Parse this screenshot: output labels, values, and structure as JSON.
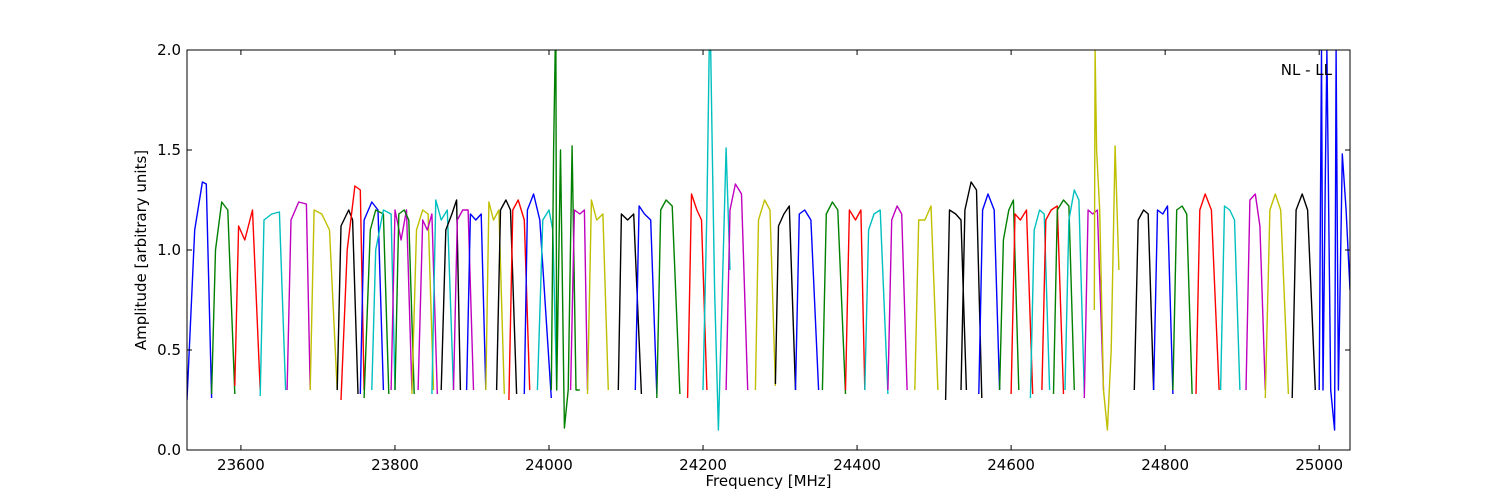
{
  "chart_data": {
    "type": "line",
    "title": "",
    "xlabel": "Frequency [MHz]",
    "ylabel": "Amplitude [arbitrary units]",
    "annotation": "NL - LL",
    "xlim": [
      23530,
      25040
    ],
    "ylim": [
      0.0,
      2.0
    ],
    "xticks": [
      23600,
      23800,
      24000,
      24200,
      24400,
      24600,
      24800,
      25000
    ],
    "yticks": [
      0.0,
      0.5,
      1.0,
      1.5,
      2.0
    ],
    "xtick_labels": [
      "23600",
      "23800",
      "24000",
      "24200",
      "24400",
      "24600",
      "24800",
      "25000"
    ],
    "ytick_labels": [
      "0.0",
      "0.5",
      "1.0",
      "1.5",
      "2.0"
    ],
    "grid": false,
    "colors": [
      "#0000ff",
      "#008000",
      "#ff0000",
      "#00bfbf",
      "#bf00bf",
      "#bfbf00",
      "#000000"
    ],
    "series": [
      {
        "color": "#0000ff",
        "x": [
          23530,
          23540,
          23550,
          23555,
          23562
        ],
        "y": [
          0.25,
          1.1,
          1.34,
          1.33,
          0.26
        ]
      },
      {
        "color": "#008000",
        "x": [
          23562,
          23567,
          23575,
          23583,
          23592
        ],
        "y": [
          0.28,
          1.0,
          1.24,
          1.2,
          0.28
        ]
      },
      {
        "color": "#ff0000",
        "x": [
          23592,
          23597,
          23605,
          23615,
          23625
        ],
        "y": [
          0.32,
          1.12,
          1.05,
          1.2,
          0.3
        ]
      },
      {
        "color": "#00bfbf",
        "x": [
          23625,
          23630,
          23640,
          23650,
          23658
        ],
        "y": [
          0.27,
          1.15,
          1.18,
          1.19,
          0.3
        ]
      },
      {
        "color": "#bf00bf",
        "x": [
          23660,
          23665,
          23675,
          23685,
          23690
        ],
        "y": [
          0.3,
          1.15,
          1.24,
          1.23,
          0.3
        ]
      },
      {
        "color": "#bfbf00",
        "x": [
          23690,
          23695,
          23705,
          23715,
          23725
        ],
        "y": [
          0.3,
          1.2,
          1.18,
          1.1,
          0.3
        ]
      },
      {
        "color": "#000000",
        "x": [
          23725,
          23730,
          23740,
          23745,
          23752
        ],
        "y": [
          0.3,
          1.12,
          1.2,
          1.15,
          0.28
        ]
      },
      {
        "color": "#ff0000",
        "x": [
          23730,
          23738,
          23748,
          23755,
          23760
        ],
        "y": [
          0.25,
          1.0,
          1.32,
          1.3,
          0.3
        ]
      },
      {
        "color": "#0000ff",
        "x": [
          23755,
          23760,
          23770,
          23778,
          23785
        ],
        "y": [
          0.28,
          1.15,
          1.24,
          1.2,
          0.3
        ]
      },
      {
        "color": "#008000",
        "x": [
          23760,
          23768,
          23775,
          23785,
          23792
        ],
        "y": [
          0.26,
          1.1,
          1.2,
          1.18,
          0.28
        ]
      },
      {
        "color": "#00bfbf",
        "x": [
          23770,
          23775,
          23785,
          23795,
          23800
        ],
        "y": [
          0.3,
          1.0,
          1.2,
          1.18,
          0.3
        ]
      },
      {
        "color": "#bf00bf",
        "x": [
          23795,
          23800,
          23808,
          23815,
          23822
        ],
        "y": [
          0.3,
          1.2,
          1.05,
          1.2,
          0.3
        ]
      },
      {
        "color": "#008000",
        "x": [
          23800,
          23805,
          23812,
          23818,
          23825
        ],
        "y": [
          0.3,
          1.18,
          1.2,
          1.15,
          0.28
        ]
      },
      {
        "color": "#bfbf00",
        "x": [
          23822,
          23828,
          23836,
          23843,
          23850
        ],
        "y": [
          0.28,
          1.1,
          1.2,
          1.18,
          0.3
        ]
      },
      {
        "color": "#bf00bf",
        "x": [
          23830,
          23836,
          23842,
          23848,
          23855
        ],
        "y": [
          0.3,
          1.15,
          1.1,
          1.18,
          0.28
        ]
      },
      {
        "color": "#00bfbf",
        "x": [
          23848,
          23853,
          23860,
          23868,
          23876
        ],
        "y": [
          0.28,
          1.25,
          1.15,
          1.2,
          0.3
        ]
      },
      {
        "color": "#000000",
        "x": [
          23860,
          23866,
          23874,
          23880,
          23885
        ],
        "y": [
          0.3,
          1.1,
          1.18,
          1.25,
          0.3
        ]
      },
      {
        "color": "#bf00bf",
        "x": [
          23876,
          23881,
          23888,
          23895,
          23902
        ],
        "y": [
          0.3,
          1.15,
          1.2,
          1.2,
          0.3
        ]
      },
      {
        "color": "#0000ff",
        "x": [
          23893,
          23898,
          23905,
          23912,
          23918
        ],
        "y": [
          0.3,
          1.18,
          1.15,
          1.18,
          0.3
        ]
      },
      {
        "color": "#bfbf00",
        "x": [
          23918,
          23922,
          23928,
          23935,
          23942
        ],
        "y": [
          0.3,
          1.24,
          1.15,
          1.2,
          0.28
        ]
      },
      {
        "color": "#000000",
        "x": [
          23932,
          23937,
          23944,
          23950,
          23958
        ],
        "y": [
          0.3,
          1.2,
          1.25,
          1.2,
          0.28
        ]
      },
      {
        "color": "#ff0000",
        "x": [
          23948,
          23953,
          23960,
          23968,
          23975
        ],
        "y": [
          0.25,
          1.2,
          1.25,
          1.15,
          0.3
        ]
      },
      {
        "color": "#0000ff",
        "x": [
          23968,
          23972,
          23980,
          23988,
          24003
        ],
        "y": [
          0.28,
          1.2,
          1.28,
          1.15,
          0.26
        ]
      },
      {
        "color": "#00bfbf",
        "x": [
          23985,
          23992,
          24000,
          24005,
          24010
        ],
        "y": [
          0.3,
          1.15,
          1.2,
          1.1,
          0.3
        ]
      },
      {
        "color": "#008000",
        "x": [
          24003,
          24006,
          24008,
          24009,
          24010,
          24015,
          24020,
          24025,
          24030,
          24035,
          24040
        ],
        "y": [
          0.3,
          1.5,
          2.0,
          2.0,
          0.3,
          1.5,
          0.11,
          0.3,
          1.52,
          0.3,
          0.3
        ]
      },
      {
        "color": "#bf00bf",
        "x": [
          24028,
          24033,
          24040,
          24046,
          24050
        ],
        "y": [
          0.3,
          1.2,
          1.18,
          1.2,
          0.3
        ]
      },
      {
        "color": "#bfbf00",
        "x": [
          24050,
          24055,
          24062,
          24070,
          24077
        ],
        "y": [
          0.28,
          1.25,
          1.15,
          1.18,
          0.3
        ]
      },
      {
        "color": "#000000",
        "x": [
          24090,
          24094,
          24102,
          24110,
          24120
        ],
        "y": [
          0.3,
          1.18,
          1.15,
          1.18,
          0.28
        ]
      },
      {
        "color": "#0000ff",
        "x": [
          24112,
          24117,
          24124,
          24132,
          24140
        ],
        "y": [
          0.3,
          1.22,
          1.18,
          1.15,
          0.28
        ]
      },
      {
        "color": "#008000",
        "x": [
          24140,
          24145,
          24152,
          24160,
          24170
        ],
        "y": [
          0.26,
          1.2,
          1.25,
          1.22,
          0.28
        ]
      },
      {
        "color": "#ff0000",
        "x": [
          24180,
          24185,
          24192,
          24198,
          24205
        ],
        "y": [
          0.26,
          1.28,
          1.2,
          1.15,
          0.3
        ]
      },
      {
        "color": "#00bfbf",
        "x": [
          24200,
          24205,
          24208,
          24210,
          24212,
          24215,
          24220,
          24225,
          24230,
          24235
        ],
        "y": [
          0.3,
          1.2,
          2.0,
          2.0,
          1.49,
          0.8,
          0.1,
          0.8,
          1.51,
          0.9
        ]
      },
      {
        "color": "#bf00bf",
        "x": [
          24230,
          24235,
          24242,
          24250,
          24258
        ],
        "y": [
          0.3,
          1.2,
          1.33,
          1.28,
          0.3
        ]
      },
      {
        "color": "#bfbf00",
        "x": [
          24268,
          24272,
          24280,
          24287,
          24294
        ],
        "y": [
          0.3,
          1.15,
          1.25,
          1.2,
          0.32
        ]
      },
      {
        "color": "#000000",
        "x": [
          24294,
          24298,
          24305,
          24312,
          24320
        ],
        "y": [
          0.33,
          1.12,
          1.18,
          1.22,
          0.3
        ]
      },
      {
        "color": "#0000ff",
        "x": [
          24320,
          24325,
          24332,
          24340,
          24350
        ],
        "y": [
          0.3,
          1.18,
          1.2,
          1.15,
          0.3
        ]
      },
      {
        "color": "#008000",
        "x": [
          24355,
          24360,
          24368,
          24375,
          24385
        ],
        "y": [
          0.3,
          1.18,
          1.24,
          1.2,
          0.28
        ]
      },
      {
        "color": "#ff0000",
        "x": [
          24385,
          24390,
          24398,
          24405,
          24410
        ],
        "y": [
          0.3,
          1.2,
          1.15,
          1.2,
          0.3
        ]
      },
      {
        "color": "#00bfbf",
        "x": [
          24410,
          24415,
          24422,
          24430,
          24440
        ],
        "y": [
          0.3,
          1.1,
          1.18,
          1.2,
          0.28
        ]
      },
      {
        "color": "#bf00bf",
        "x": [
          24440,
          24445,
          24452,
          24458,
          24465
        ],
        "y": [
          0.3,
          1.15,
          1.22,
          1.18,
          0.3
        ]
      },
      {
        "color": "#bfbf00",
        "x": [
          24475,
          24480,
          24488,
          24496,
          24505
        ],
        "y": [
          0.3,
          1.15,
          1.15,
          1.22,
          0.3
        ]
      },
      {
        "color": "#000000",
        "x": [
          24515,
          24520,
          24528,
          24535,
          24542
        ],
        "y": [
          0.25,
          1.2,
          1.18,
          1.15,
          0.3
        ]
      },
      {
        "color": "#000000",
        "x": [
          24535,
          24540,
          24548,
          24555,
          24562
        ],
        "y": [
          0.3,
          1.2,
          1.34,
          1.3,
          0.26
        ]
      },
      {
        "color": "#0000ff",
        "x": [
          24558,
          24563,
          24570,
          24578,
          24585
        ],
        "y": [
          0.28,
          1.2,
          1.28,
          1.2,
          0.3
        ]
      },
      {
        "color": "#008000",
        "x": [
          24585,
          24590,
          24597,
          24603,
          24610
        ],
        "y": [
          0.3,
          1.05,
          1.2,
          1.25,
          0.3
        ]
      },
      {
        "color": "#ff0000",
        "x": [
          24600,
          24605,
          24612,
          24620,
          24628
        ],
        "y": [
          0.28,
          1.18,
          1.15,
          1.2,
          0.28
        ]
      },
      {
        "color": "#00bfbf",
        "x": [
          24625,
          24630,
          24637,
          24643,
          24650
        ],
        "y": [
          0.26,
          1.1,
          1.2,
          1.18,
          0.3
        ]
      },
      {
        "color": "#ff0000",
        "x": [
          24640,
          24645,
          24652,
          24660,
          24668
        ],
        "y": [
          0.3,
          1.15,
          1.2,
          1.22,
          0.28
        ]
      },
      {
        "color": "#008000",
        "x": [
          24655,
          24660,
          24668,
          24675,
          24682
        ],
        "y": [
          0.28,
          1.2,
          1.25,
          1.22,
          0.3
        ]
      },
      {
        "color": "#00bfbf",
        "x": [
          24670,
          24675,
          24682,
          24688,
          24695
        ],
        "y": [
          0.3,
          1.15,
          1.3,
          1.25,
          0.28
        ]
      },
      {
        "color": "#bf00bf",
        "x": [
          24695,
          24700,
          24706,
          24712,
          24720
        ],
        "y": [
          0.26,
          1.2,
          1.18,
          1.2,
          0.3
        ]
      },
      {
        "color": "#bfbf00",
        "x": [
          24708,
          24709,
          24711,
          24715,
          24720,
          24725,
          24730,
          24735,
          24740
        ],
        "y": [
          0.7,
          2.0,
          1.5,
          1.2,
          0.3,
          0.1,
          0.5,
          1.52,
          0.9
        ]
      },
      {
        "color": "#000000",
        "x": [
          24760,
          24765,
          24772,
          24778,
          24785
        ],
        "y": [
          0.3,
          1.15,
          1.2,
          1.18,
          0.3
        ]
      },
      {
        "color": "#0000ff",
        "x": [
          24785,
          24790,
          24797,
          24803,
          24810
        ],
        "y": [
          0.3,
          1.2,
          1.18,
          1.22,
          0.28
        ]
      },
      {
        "color": "#008000",
        "x": [
          24810,
          24815,
          24822,
          24828,
          24835
        ],
        "y": [
          0.3,
          1.2,
          1.22,
          1.18,
          0.28
        ]
      },
      {
        "color": "#ff0000",
        "x": [
          24840,
          24845,
          24852,
          24860,
          24870
        ],
        "y": [
          0.28,
          1.2,
          1.28,
          1.2,
          0.3
        ]
      },
      {
        "color": "#00bfbf",
        "x": [
          24872,
          24877,
          24884,
          24890,
          24897
        ],
        "y": [
          0.3,
          1.22,
          1.2,
          1.15,
          0.3
        ]
      },
      {
        "color": "#bf00bf",
        "x": [
          24905,
          24910,
          24917,
          24923,
          24930
        ],
        "y": [
          0.3,
          1.25,
          1.28,
          1.12,
          0.3
        ]
      },
      {
        "color": "#bfbf00",
        "x": [
          24930,
          24936,
          24943,
          24950,
          24960
        ],
        "y": [
          0.26,
          1.2,
          1.28,
          1.2,
          0.28
        ]
      },
      {
        "color": "#000000",
        "x": [
          24965,
          24970,
          24978,
          24985,
          24995
        ],
        "y": [
          0.26,
          1.2,
          1.28,
          1.2,
          0.3
        ]
      },
      {
        "color": "#0000ff",
        "x": [
          25000,
          25003,
          25005,
          25008,
          25010,
          25015,
          25020,
          25022,
          25025,
          25030,
          25035,
          25040
        ],
        "y": [
          0.3,
          2.0,
          0.3,
          1.4,
          2.0,
          0.3,
          0.1,
          2.0,
          0.3,
          1.48,
          1.2,
          0.8
        ]
      }
    ]
  }
}
